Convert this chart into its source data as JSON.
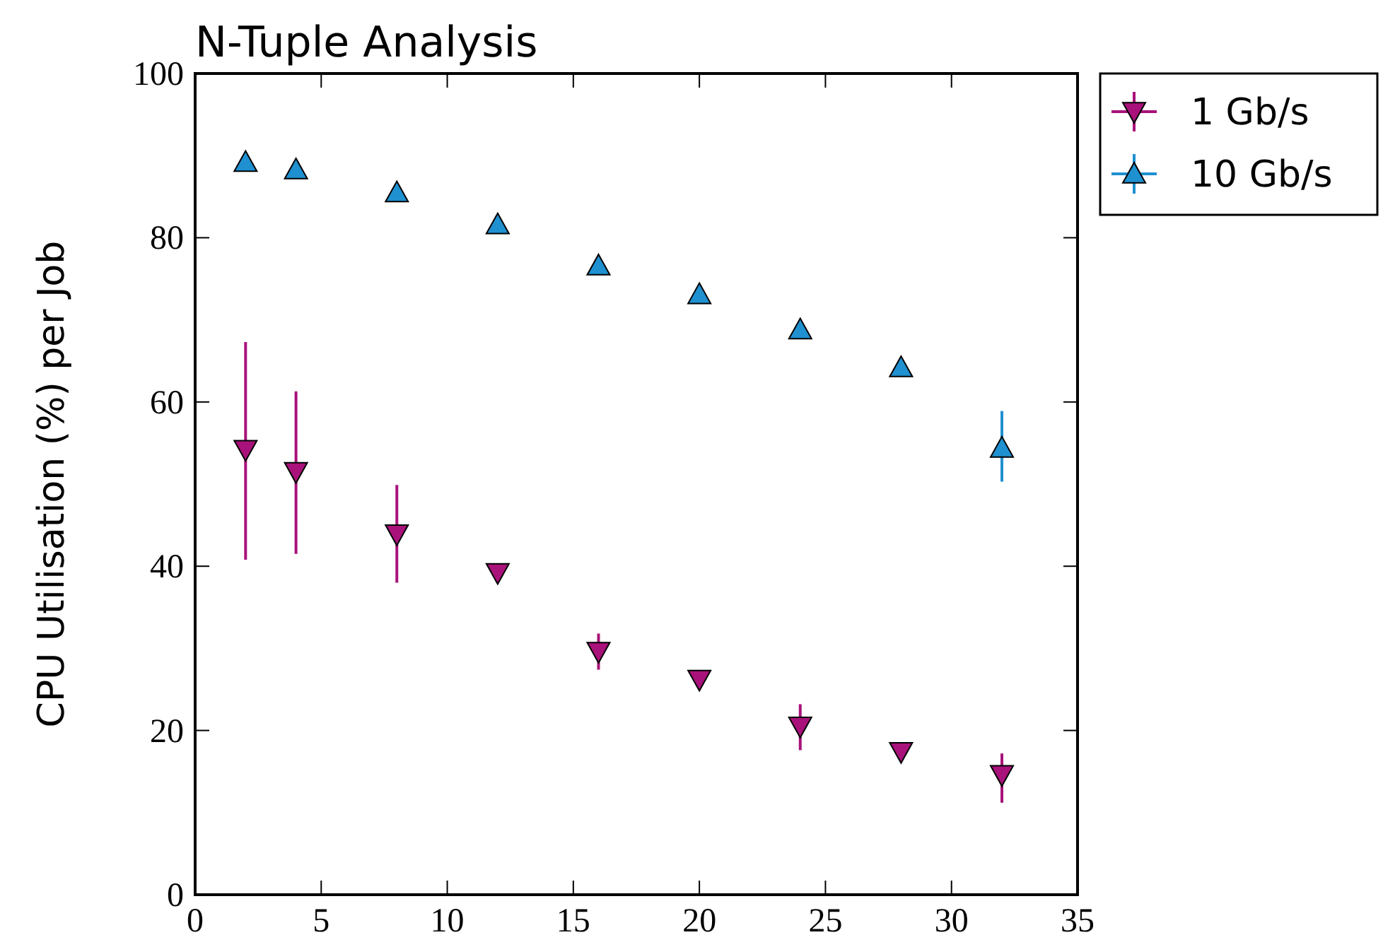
{
  "chart_data": {
    "type": "scatter",
    "title": "N-Tuple Analysis",
    "ylabel": "CPU Utilisation (%) per Job",
    "x": [
      2,
      4,
      8,
      12,
      16,
      20,
      24,
      28,
      32
    ],
    "series": [
      {
        "name": "1 Gb/s",
        "color": "#a8127a",
        "marker": "triangle-down",
        "values": [
          54.2,
          51.5,
          43.9,
          39.2,
          29.6,
          26.2,
          20.5,
          17.4,
          14.6
        ],
        "errors": [
          [
            40.8,
            67.3
          ],
          [
            41.5,
            61.3
          ],
          [
            38.0,
            49.9
          ],
          null,
          [
            27.4,
            31.8
          ],
          null,
          [
            17.6,
            23.2
          ],
          null,
          [
            11.2,
            17.2
          ]
        ]
      },
      {
        "name": "10 Gb/s",
        "color": "#1f90d0",
        "marker": "triangle",
        "values": [
          89.2,
          88.3,
          85.5,
          81.6,
          76.6,
          73.1,
          68.8,
          64.2,
          54.4
        ],
        "errors": [
          null,
          null,
          null,
          null,
          null,
          null,
          null,
          null,
          [
            50.3,
            58.9
          ]
        ]
      }
    ],
    "xlim": [
      0,
      35
    ],
    "xticks": [
      0,
      5,
      10,
      15,
      20,
      25,
      30,
      35
    ],
    "ylim": [
      0,
      100
    ],
    "yticks": [
      0,
      20,
      40,
      60,
      80,
      100
    ],
    "grid": false,
    "legend": "top right"
  }
}
